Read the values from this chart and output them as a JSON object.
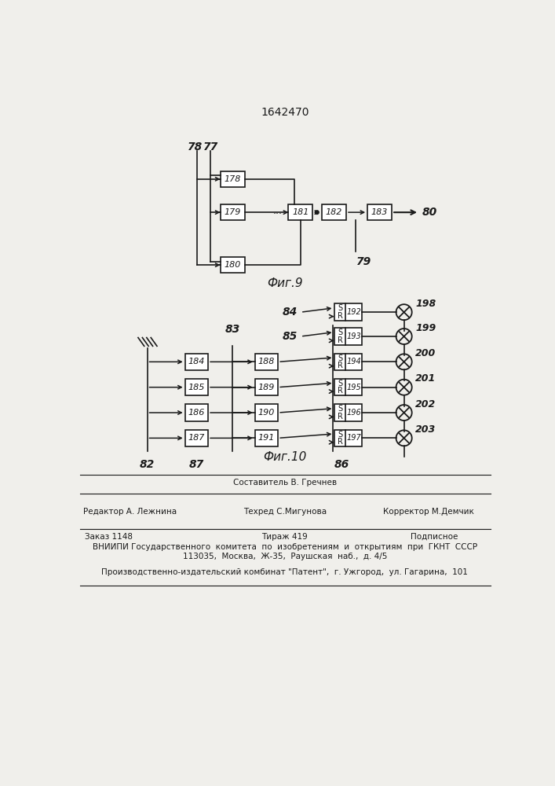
{
  "title": "1642470",
  "fig9_label": "Фиг.9",
  "fig10_label": "Фиг.10",
  "bg_color": "#f0efeb",
  "line_color": "#1a1a1a",
  "box_color": "#ffffff",
  "footer3": "Производственно-издательский комбинат \"Патент\",  г. Ужгород,  ул. Гагарина,  101"
}
